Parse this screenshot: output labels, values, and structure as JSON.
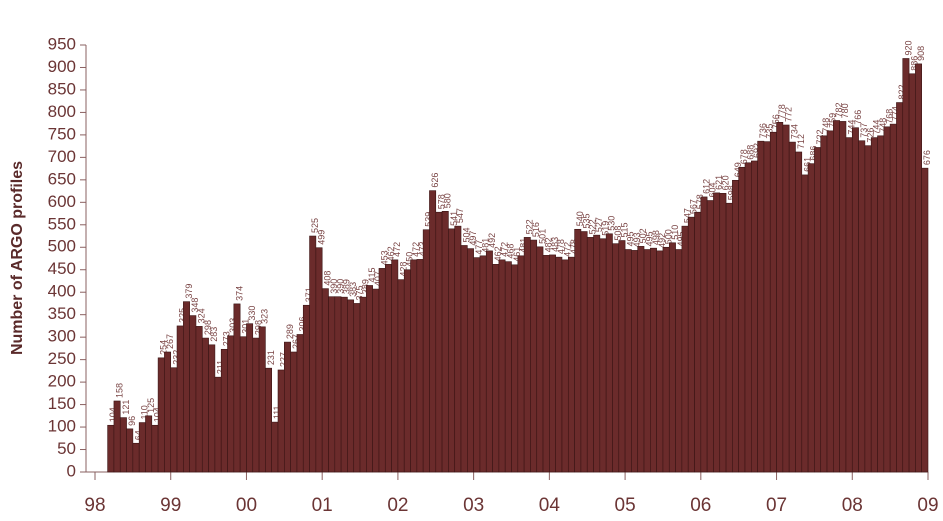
{
  "chart_data": {
    "type": "bar",
    "y_label": "Number of ARGO profiles",
    "x": [
      2,
      3,
      4,
      5,
      6,
      7,
      8,
      9,
      10,
      11,
      12,
      13,
      14,
      15,
      16,
      17,
      18,
      19,
      20,
      21,
      22,
      23,
      24,
      25,
      26,
      27,
      28,
      29,
      30,
      31,
      32,
      33,
      34,
      35,
      36,
      37,
      38,
      39,
      40,
      41,
      42,
      43,
      44,
      45,
      46,
      47,
      48,
      49,
      50,
      51,
      52,
      53,
      54,
      55,
      56,
      57,
      58,
      59,
      60,
      61,
      62,
      63,
      64,
      65,
      66,
      67,
      68,
      69,
      70,
      71,
      72,
      73,
      74,
      75,
      76,
      77,
      78,
      79,
      80,
      81,
      82,
      83,
      84,
      85,
      86,
      87,
      88,
      89,
      90,
      91,
      92,
      93,
      94,
      95,
      96,
      97,
      98,
      99,
      100,
      101,
      102,
      103,
      104,
      105,
      106,
      107,
      108,
      109,
      110,
      111,
      112,
      113,
      114,
      115,
      116,
      117,
      118,
      119,
      120,
      121,
      122,
      123,
      124,
      125,
      126,
      127,
      128,
      129,
      130,
      131
    ],
    "values": [
      104,
      158,
      121,
      96,
      64,
      110,
      125,
      104,
      254,
      267,
      232,
      325,
      379,
      348,
      324,
      298,
      283,
      211,
      273,
      303,
      374,
      301,
      330,
      298,
      323,
      231,
      111,
      227,
      289,
      267,
      306,
      371,
      525,
      499,
      408,
      390,
      390,
      389,
      383,
      375,
      389,
      415,
      407,
      453,
      462,
      472,
      428,
      450,
      472,
      473,
      539,
      626,
      578,
      580,
      541,
      547,
      504,
      497,
      477,
      481,
      492,
      462,
      472,
      468,
      461,
      481,
      522,
      516,
      501,
      482,
      483,
      478,
      472,
      478,
      540,
      535,
      522,
      527,
      519,
      530,
      508,
      515,
      495,
      493,
      502,
      495,
      498,
      492,
      500,
      510,
      495,
      547,
      567,
      578,
      612,
      604,
      621,
      620,
      598,
      649,
      678,
      688,
      692,
      736,
      735,
      756,
      778,
      772,
      734,
      712,
      661,
      686,
      722,
      748,
      759,
      782,
      780,
      744,
      766,
      737,
      726,
      744,
      748,
      768,
      774,
      822,
      920,
      886,
      908,
      676
    ],
    "color": "#6b2b2b",
    "xlim": [
      0,
      132
    ],
    "xticks": [
      {
        "value": 0,
        "label": "98"
      },
      {
        "value": 12,
        "label": "99"
      },
      {
        "value": 24,
        "label": "00"
      },
      {
        "value": 36,
        "label": "01"
      },
      {
        "value": 48,
        "label": "02"
      },
      {
        "value": 60,
        "label": "03"
      },
      {
        "value": 72,
        "label": "04"
      },
      {
        "value": 84,
        "label": "05"
      },
      {
        "value": 96,
        "label": "06"
      },
      {
        "value": 108,
        "label": "07"
      },
      {
        "value": 120,
        "label": "08"
      },
      {
        "value": 132,
        "label": "09"
      }
    ],
    "ylim": [
      0,
      950
    ],
    "yticks": [
      0,
      50,
      100,
      150,
      200,
      250,
      300,
      350,
      400,
      450,
      500,
      550,
      600,
      650,
      700,
      750,
      800,
      850,
      900,
      950
    ]
  }
}
